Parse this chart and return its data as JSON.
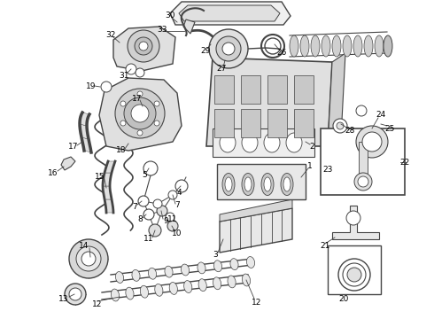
{
  "bg_color": "#ffffff",
  "line_color": "#444444",
  "label_color": "#000000",
  "fig_width": 4.9,
  "fig_height": 3.6,
  "dpi": 100
}
